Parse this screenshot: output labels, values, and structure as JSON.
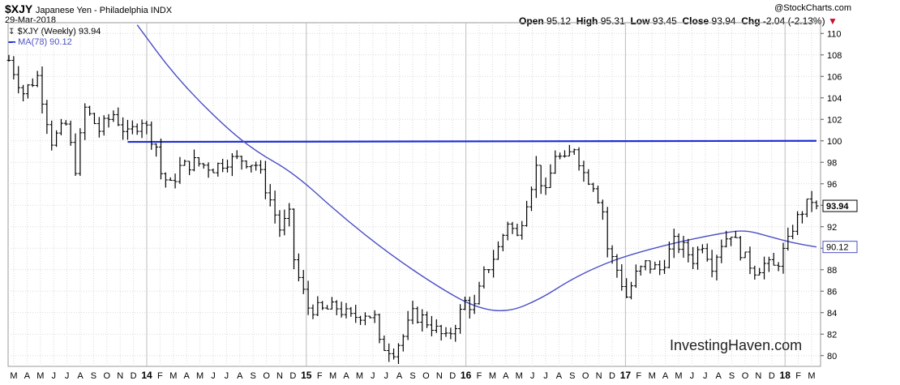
{
  "header": {
    "symbol": "$XJY",
    "description": "Japanese Yen - Philadelphia INDX",
    "date": "29-Mar-2018",
    "source": "@StockCharts.com",
    "open_label": "Open",
    "open": "95.12",
    "high_label": "High",
    "high": "95.31",
    "low_label": "Low",
    "low": "93.45",
    "close_label": "Close",
    "close": "93.94",
    "chg_label": "Chg",
    "chg": "-2.04 (-2.13%)"
  },
  "legend": {
    "price_label": "$XJY (Weekly) 93.94",
    "ma_label": "MA(78) 90.12"
  },
  "watermark": "InvestingHaven.com",
  "colors": {
    "price_bars": "#000000",
    "ma_line": "#4b4fc4",
    "resistance_line": "#1f2fd6",
    "grid": "#d9d9d9",
    "last_price_box": "#ffffff",
    "ma_box_border": "#4b4fc4",
    "down_arrow": "#c8102e"
  },
  "chart_data": {
    "type": "ohlc",
    "title": "$XJY Japanese Yen - Philadelphia INDX",
    "ylim": [
      79,
      111
    ],
    "y_ticks": [
      80,
      82,
      84,
      86,
      88,
      90,
      92,
      94,
      96,
      98,
      100,
      102,
      104,
      106,
      108,
      110
    ],
    "x_tick_labels": [
      "M",
      "A",
      "M",
      "J",
      "J",
      "A",
      "S",
      "O",
      "N",
      "D",
      "14",
      "F",
      "M",
      "A",
      "M",
      "J",
      "J",
      "A",
      "S",
      "O",
      "N",
      "D",
      "15",
      "F",
      "M",
      "A",
      "M",
      "J",
      "J",
      "A",
      "S",
      "O",
      "N",
      "D",
      "16",
      "F",
      "M",
      "A",
      "M",
      "J",
      "J",
      "A",
      "S",
      "O",
      "N",
      "D",
      "17",
      "F",
      "M",
      "A",
      "M",
      "J",
      "J",
      "A",
      "S",
      "O",
      "N",
      "D",
      "18",
      "F",
      "M"
    ],
    "last_price": 93.94,
    "ma_last": 90.12,
    "series": [
      {
        "name": "$XJY (Weekly)",
        "close_path": [
          [
            0,
            107.5
          ],
          [
            3,
            104.5
          ],
          [
            6,
            106.0
          ],
          [
            9,
            100.0
          ],
          [
            12,
            101.5
          ],
          [
            14,
            97.5
          ],
          [
            16,
            103.0
          ],
          [
            19,
            101.0
          ],
          [
            22,
            102.5
          ],
          [
            25,
            100.5
          ],
          [
            28,
            102.0
          ],
          [
            31,
            99.5
          ],
          [
            32,
            97.0
          ],
          [
            34,
            95.8
          ],
          [
            36,
            97.5
          ],
          [
            39,
            98.0
          ],
          [
            43,
            97.5
          ],
          [
            46,
            98.2
          ],
          [
            49,
            98.3
          ],
          [
            52,
            97.8
          ],
          [
            53,
            96.8
          ],
          [
            55,
            94.5
          ],
          [
            57,
            91.8
          ],
          [
            59,
            93.0
          ],
          [
            60,
            89.0
          ],
          [
            61,
            87.2
          ],
          [
            63,
            84.5
          ],
          [
            66,
            84.2
          ],
          [
            69,
            84.5
          ],
          [
            72,
            83.5
          ],
          [
            75,
            84.0
          ],
          [
            77,
            83.5
          ],
          [
            78,
            81.0
          ],
          [
            81,
            80.5
          ],
          [
            83,
            81.8
          ],
          [
            85,
            83.8
          ],
          [
            87,
            83.5
          ],
          [
            89,
            82.8
          ],
          [
            92,
            81.5
          ],
          [
            94,
            83.0
          ],
          [
            96,
            85.0
          ],
          [
            98,
            84.5
          ],
          [
            100,
            87.5
          ],
          [
            103,
            90.0
          ],
          [
            105,
            92.5
          ],
          [
            107,
            91.0
          ],
          [
            109,
            94.5
          ],
          [
            111,
            97.5
          ],
          [
            113,
            95.0
          ],
          [
            115,
            98.8
          ],
          [
            117,
            98.0
          ],
          [
            119,
            99.5
          ],
          [
            121,
            97.0
          ],
          [
            123,
            96.0
          ],
          [
            125,
            93.5
          ],
          [
            126,
            90.0
          ],
          [
            128,
            88.0
          ],
          [
            130,
            85.5
          ],
          [
            132,
            87.5
          ],
          [
            134,
            88.5
          ],
          [
            137,
            88.0
          ],
          [
            140,
            90.5
          ],
          [
            142,
            90.0
          ],
          [
            144,
            89.0
          ],
          [
            146,
            90.5
          ],
          [
            148,
            88.5
          ],
          [
            150,
            90.5
          ],
          [
            152,
            91.5
          ],
          [
            153,
            90.5
          ],
          [
            155,
            89.0
          ],
          [
            157,
            88.0
          ],
          [
            159,
            88.5
          ],
          [
            161,
            88.2
          ],
          [
            162,
            88.8
          ],
          [
            164,
            90.5
          ],
          [
            165,
            92.0
          ],
          [
            167,
            93.5
          ],
          [
            169,
            94.5
          ],
          [
            170,
            93.94
          ]
        ]
      },
      {
        "name": "MA(78)",
        "points": [
          [
            27,
            110.8
          ],
          [
            35,
            106.0
          ],
          [
            45,
            101.5
          ],
          [
            52,
            99.0
          ],
          [
            60,
            97.0
          ],
          [
            70,
            93.0
          ],
          [
            80,
            89.5
          ],
          [
            90,
            86.5
          ],
          [
            98,
            84.5
          ],
          [
            105,
            84.0
          ],
          [
            112,
            85.3
          ],
          [
            118,
            87.0
          ],
          [
            124,
            88.3
          ],
          [
            130,
            89.3
          ],
          [
            140,
            90.5
          ],
          [
            150,
            91.4
          ],
          [
            155,
            91.7
          ],
          [
            160,
            91.1
          ],
          [
            165,
            90.5
          ],
          [
            170,
            90.12
          ]
        ]
      },
      {
        "name": "Resistance",
        "points": [
          [
            25,
            99.9
          ],
          [
            170,
            100.0
          ]
        ]
      }
    ]
  }
}
